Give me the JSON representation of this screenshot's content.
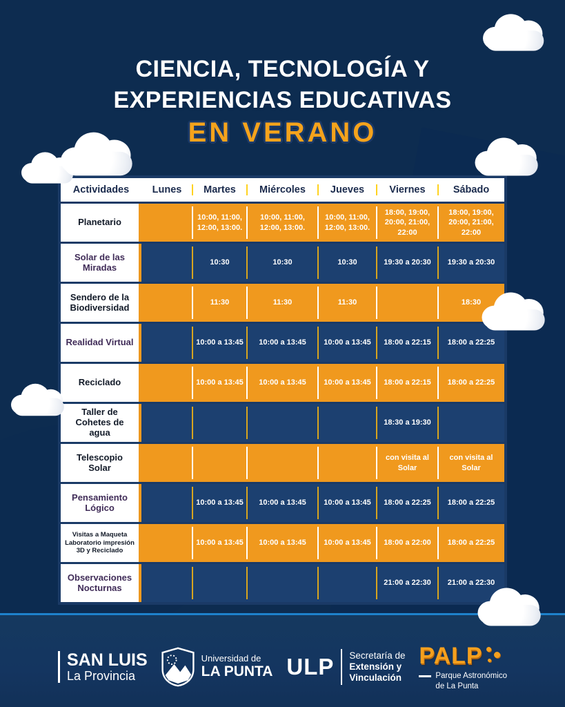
{
  "title": {
    "line1": "CIENCIA, TECNOLOGÍA Y",
    "line2": "EXPERIENCIAS EDUCATIVAS",
    "line3": "EN VERANO"
  },
  "table": {
    "headers": [
      "Actividades",
      "Lunes",
      "Martes",
      "Miércoles",
      "Jueves",
      "Viernes",
      "Sábado"
    ],
    "rows": [
      {
        "activity": "Planetario",
        "color": "orange",
        "label_style": "dark",
        "small": false,
        "cells": [
          "",
          "10:00, 11:00, 12:00, 13:00.",
          "10:00, 11:00, 12:00, 13:00.",
          "10:00, 11:00, 12:00, 13:00.",
          "18:00, 19:00, 20:00, 21:00, 22:00",
          "18:00, 19:00, 20:00, 21:00, 22:00"
        ]
      },
      {
        "activity": "Solar de las Miradas",
        "color": "navy",
        "label_style": "purple",
        "small": false,
        "cells": [
          "",
          "10:30",
          "10:30",
          "10:30",
          "19:30 a 20:30",
          "19:30 a 20:30"
        ]
      },
      {
        "activity": "Sendero de la Biodiversidad",
        "color": "orange",
        "label_style": "dark",
        "small": false,
        "cells": [
          "",
          "11:30",
          "11:30",
          "11:30",
          "",
          "18:30"
        ]
      },
      {
        "activity": "Realidad Virtual",
        "color": "navy",
        "label_style": "purple",
        "small": false,
        "cells": [
          "",
          "10:00 a 13:45",
          "10:00 a 13:45",
          "10:00 a 13:45",
          "18:00 a 22:15",
          "18:00 a 22:25"
        ]
      },
      {
        "activity": "Reciclado",
        "color": "orange",
        "label_style": "dark",
        "small": false,
        "cells": [
          "",
          "10:00 a 13:45",
          "10:00 a 13:45",
          "10:00 a 13:45",
          "18:00 a 22:15",
          "18:00 a 22:25"
        ]
      },
      {
        "activity": "Taller de Cohetes de agua",
        "color": "navy",
        "label_style": "dark",
        "small": false,
        "cells": [
          "",
          "",
          "",
          "",
          "18:30 a 19:30",
          ""
        ]
      },
      {
        "activity": "Telescopio Solar",
        "color": "orange",
        "label_style": "dark",
        "small": false,
        "cells": [
          "",
          "",
          "",
          "",
          "con visita al Solar",
          "con visita al Solar"
        ]
      },
      {
        "activity": "Pensamiento Lógico",
        "color": "navy",
        "label_style": "purple",
        "small": false,
        "cells": [
          "",
          "10:00 a 13:45",
          "10:00 a 13:45",
          "10:00 a 13:45",
          "18:00 a 22:25",
          "18:00 a 22:25"
        ]
      },
      {
        "activity": "Visitas a Maqueta Laboratorio impresión 3D y Reciclado",
        "color": "orange",
        "label_style": "dark",
        "small": true,
        "cells": [
          "",
          "10:00 a 13:45",
          "10:00 a 13:45",
          "10:00 a 13:45",
          "18:00 a 22:00",
          "18:00 a 22:25"
        ]
      },
      {
        "activity": "Observaciones Nocturnas",
        "color": "navy",
        "label_style": "purple",
        "small": false,
        "cells": [
          "",
          "",
          "",
          "",
          "21:00 a 22:30",
          "21:00 a 22:30"
        ]
      }
    ]
  },
  "footer": {
    "sanluis": {
      "line1": "SAN LUIS",
      "line2": "La Provincia"
    },
    "university": {
      "line1": "Universidad de",
      "line2": "LA PUNTA"
    },
    "secretary": {
      "acronym": "ULP",
      "line1": "Secretaría de",
      "line2": "Extensión y",
      "line3": "Vinculación"
    },
    "palp": {
      "name": "PALP",
      "line1": "Parque Astronómico",
      "line2": "de La Punta"
    }
  },
  "icons": {
    "shield": "shield-icon",
    "cloud": "cloud-icon",
    "palp_dots": "palp-dots-icon"
  },
  "colors": {
    "orange_cell": "#F0991E",
    "navy_cell": "#1C4070",
    "table_border": "#1A3A66",
    "header_divider_yellow": "#FFD21E",
    "navy_row_divider_gold": "#D8A51E",
    "verano_orange": "#F5A31C",
    "purple_label": "#402C58",
    "dark_label": "#121A28",
    "background_top_blue": "#1777C2",
    "background_bottom_navy": "#14375F",
    "horizon_blue": "#1E82CC",
    "palp_orange": "#F5A01E"
  }
}
